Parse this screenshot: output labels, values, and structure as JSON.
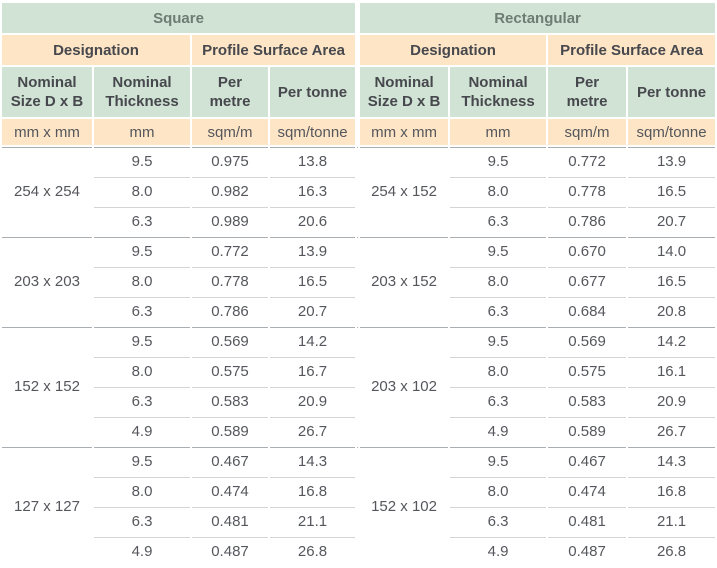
{
  "chart_data": {
    "type": "table",
    "layout": {
      "halves": 2,
      "grid": "off",
      "group_row_counts": [
        3,
        3,
        4,
        4
      ]
    },
    "sections": [
      {
        "title": "Square",
        "designation_label": "Designation",
        "surface_area_label": "Profile Surface Area",
        "columns": [
          "Nominal\nSize D x B",
          "Nominal\nThickness",
          "Per\nmetre",
          "Per tonne"
        ],
        "units": [
          "mm x mm",
          "mm",
          "sqm/m",
          "sqm/tonne"
        ],
        "groups": [
          {
            "size": "254 x 254",
            "rows": [
              [
                "9.5",
                "0.975",
                "13.8"
              ],
              [
                "8.0",
                "0.982",
                "16.3"
              ],
              [
                "6.3",
                "0.989",
                "20.6"
              ]
            ]
          },
          {
            "size": "203 x 203",
            "rows": [
              [
                "9.5",
                "0.772",
                "13.9"
              ],
              [
                "8.0",
                "0.778",
                "16.5"
              ],
              [
                "6.3",
                "0.786",
                "20.7"
              ]
            ]
          },
          {
            "size": "152 x 152",
            "rows": [
              [
                "9.5",
                "0.569",
                "14.2"
              ],
              [
                "8.0",
                "0.575",
                "16.7"
              ],
              [
                "6.3",
                "0.583",
                "20.9"
              ],
              [
                "4.9",
                "0.589",
                "26.7"
              ]
            ]
          },
          {
            "size": "127 x 127",
            "rows": [
              [
                "9.5",
                "0.467",
                "14.3"
              ],
              [
                "8.0",
                "0.474",
                "16.8"
              ],
              [
                "6.3",
                "0.481",
                "21.1"
              ],
              [
                "4.9",
                "0.487",
                "26.8"
              ]
            ]
          }
        ]
      },
      {
        "title": "Rectangular",
        "designation_label": "Designation",
        "surface_area_label": "Profile Surface Area",
        "columns": [
          "Nominal\nSize D x B",
          "Nominal\nThickness",
          "Per\nmetre",
          "Per tonne"
        ],
        "units": [
          "mm x mm",
          "mm",
          "sqm/m",
          "sqm/tonne"
        ],
        "groups": [
          {
            "size": "254 x 152",
            "rows": [
              [
                "9.5",
                "0.772",
                "13.9"
              ],
              [
                "8.0",
                "0.778",
                "16.5"
              ],
              [
                "6.3",
                "0.786",
                "20.7"
              ]
            ]
          },
          {
            "size": "203 x 152",
            "rows": [
              [
                "9.5",
                "0.670",
                "14.0"
              ],
              [
                "8.0",
                "0.677",
                "16.5"
              ],
              [
                "6.3",
                "0.684",
                "20.8"
              ]
            ]
          },
          {
            "size": "203 x 102",
            "rows": [
              [
                "9.5",
                "0.569",
                "14.2"
              ],
              [
                "8.0",
                "0.575",
                "16.1"
              ],
              [
                "6.3",
                "0.583",
                "20.9"
              ],
              [
                "4.9",
                "0.589",
                "26.7"
              ]
            ]
          },
          {
            "size": "152 x 102",
            "rows": [
              [
                "9.5",
                "0.467",
                "14.3"
              ],
              [
                "8.0",
                "0.474",
                "16.8"
              ],
              [
                "6.3",
                "0.481",
                "21.1"
              ],
              [
                "4.9",
                "0.487",
                "26.8"
              ]
            ]
          }
        ]
      }
    ]
  },
  "colors": {
    "header_green": "#d0e3d5",
    "header_peach": "#fde5c6",
    "section_title_text": "#6e7d73",
    "header_text": "#47484d",
    "body_text": "#55575c",
    "group_border": "#a9aeb2",
    "row_border": "#d2d4d6"
  }
}
